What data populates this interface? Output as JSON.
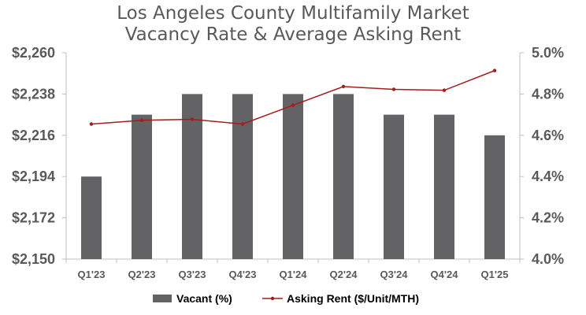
{
  "chart_data": {
    "type": "bar+line",
    "title_lines": [
      "Los Angeles County Multifamily Market",
      "Vacancy Rate & Average Asking Rent"
    ],
    "categories": [
      "Q1'23",
      "Q2'23",
      "Q3'23",
      "Q4'23",
      "Q1'24",
      "Q2'24",
      "Q3'24",
      "Q4'24",
      "Q1'25"
    ],
    "series": [
      {
        "name": "Vacant (%)",
        "kind": "bar",
        "axis": "right",
        "color": "#636366",
        "values": [
          4.4,
          4.7,
          4.8,
          4.8,
          4.8,
          4.8,
          4.7,
          4.7,
          4.6
        ]
      },
      {
        "name": "Asking Rent ($/Unit/MTH)",
        "kind": "line",
        "axis": "left",
        "color": "#a51c1c",
        "values": [
          2222,
          2224,
          2224.5,
          2222,
          2232,
          2242,
          2240.5,
          2240,
          2250.5
        ]
      }
    ],
    "y_left": {
      "min": 2150,
      "max": 2260,
      "ticks": [
        "$2,150",
        "$2,172",
        "$2,194",
        "$2,216",
        "$2,238",
        "$2,260"
      ]
    },
    "y_right": {
      "min": 4.0,
      "max": 5.0,
      "ticks": [
        "4.0%",
        "4.2%",
        "4.4%",
        "4.6%",
        "4.8%",
        "5.0%"
      ]
    },
    "legend_position": "bottom",
    "grid": false,
    "axis_color": "#bfbfbf",
    "text_color": "#595959"
  }
}
